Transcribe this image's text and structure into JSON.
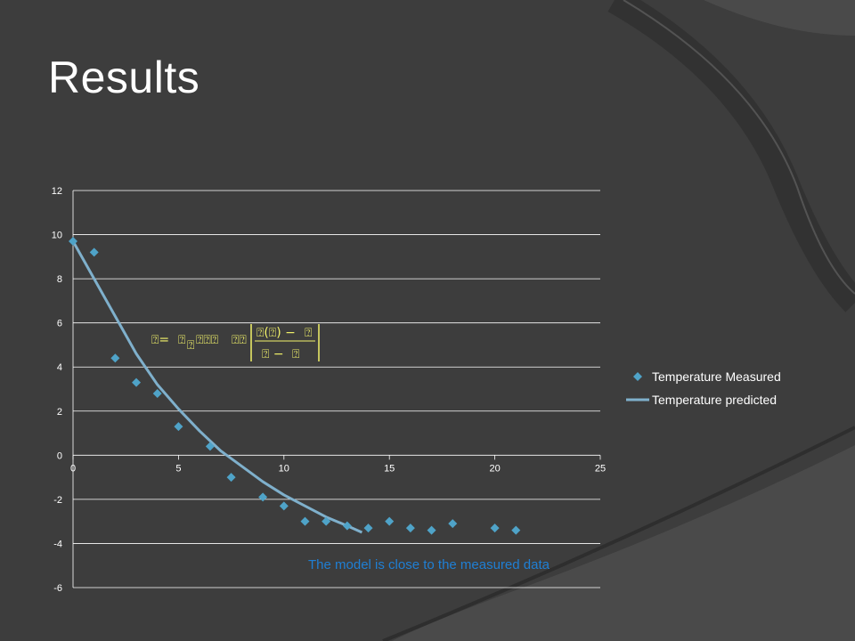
{
  "slide": {
    "title": "Results",
    "caption": "The model is close to the measured data"
  },
  "colors": {
    "background": "#3d3d3d",
    "marker": "#4fa3c8",
    "line": "#7fb0cc",
    "caption": "#1f7fd4",
    "equation": "#f3f36a"
  },
  "chart_data": {
    "type": "scatter",
    "xlim": [
      0,
      25
    ],
    "ylim": [
      -6,
      12
    ],
    "x_ticks": [
      "0",
      "5",
      "10",
      "15",
      "20",
      "25"
    ],
    "y_ticks": [
      "12",
      "10",
      "8",
      "6",
      "4",
      "2",
      "0",
      "-2",
      "-4",
      "-6"
    ],
    "grid": true,
    "legend_position": "right",
    "series": [
      {
        "name": "Temperature Measured",
        "kind": "marker",
        "x": [
          0,
          1,
          2,
          3,
          4,
          5,
          6.5,
          7.5,
          9,
          10,
          11,
          12,
          13,
          14,
          15,
          16,
          17,
          18,
          20,
          21
        ],
        "y": [
          9.7,
          9.2,
          4.4,
          3.3,
          2.8,
          1.3,
          0.4,
          -1.0,
          -1.9,
          -2.3,
          -3.0,
          -3.0,
          -3.2,
          -3.3,
          -3.0,
          -3.3,
          -3.4,
          -3.1,
          -3.3,
          -3.4
        ]
      },
      {
        "name": "Temperature predicted",
        "kind": "line",
        "x": [
          0,
          1,
          2,
          3,
          4,
          5,
          6,
          7,
          8,
          9,
          10,
          11,
          12,
          13,
          13.7
        ],
        "y": [
          9.7,
          8.0,
          6.3,
          4.6,
          3.2,
          2.1,
          1.1,
          0.2,
          -0.5,
          -1.2,
          -1.8,
          -2.3,
          -2.8,
          -3.2,
          -3.5
        ]
      }
    ]
  }
}
